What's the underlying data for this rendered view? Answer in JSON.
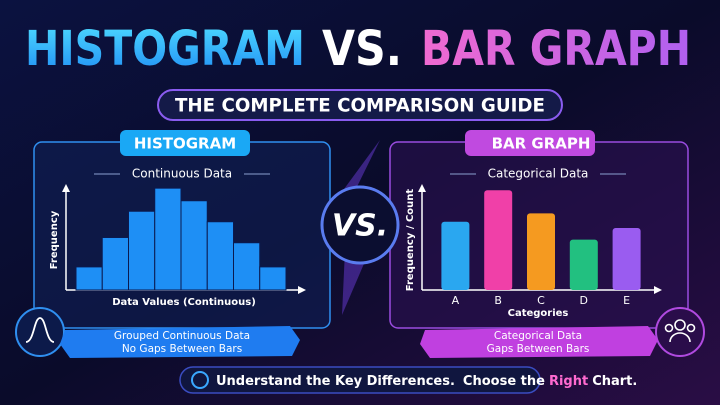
{
  "header": {
    "title_left": "HISTOGRAM",
    "title_vs": "VS.",
    "title_right": "BAR GRAPH",
    "subtitle": "THE COMPLETE COMPARISON GUIDE"
  },
  "vs_badge": "VS.",
  "footer": {
    "first": "Understand the Key Differences.",
    "second": [
      "Choose the",
      "Right",
      "Chart."
    ]
  },
  "chart_data": [
    {
      "type": "histogram",
      "panel_title": "HISTOGRAM",
      "title": "Continuous Data",
      "xlabel": "Data Values (Continuous)",
      "ylabel": "Frequency",
      "bins": [
        0,
        1,
        2,
        3,
        4,
        5,
        6,
        7,
        8
      ],
      "values": [
        2.2,
        5,
        7.5,
        9.7,
        8.5,
        6.5,
        4.5,
        2.2
      ],
      "color": "#1e8ff5",
      "xlim": [
        0,
        8
      ],
      "ylim": [
        0,
        10
      ],
      "caption": [
        "Grouped Continuous Data",
        "No Gaps Between Bars"
      ]
    },
    {
      "type": "bar",
      "panel_title": "BAR GRAPH",
      "title": "Categorical Data",
      "xlabel": "Categories",
      "ylabel": "Frequency / Count",
      "categories": [
        "A",
        "B",
        "C",
        "D",
        "E"
      ],
      "values": [
        6.5,
        9.5,
        7.3,
        4.8,
        5.9
      ],
      "colors": [
        "#2aa7f0",
        "#f040a8",
        "#f59a20",
        "#22c080",
        "#9a5cf0"
      ],
      "ylim": [
        0,
        10
      ],
      "caption": [
        "Categorical Data",
        "Gaps Between Bars"
      ]
    }
  ]
}
